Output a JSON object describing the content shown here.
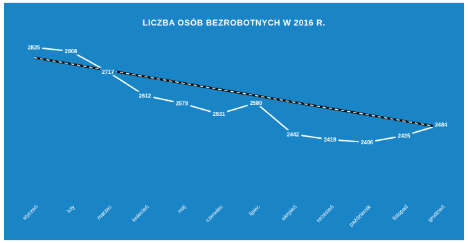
{
  "chart_data": {
    "type": "line",
    "title": "LICZBA OSÓB BEZROBOTNYCH W 2016 R.",
    "categories": [
      "styczeń",
      "luty",
      "marzec",
      "kwiecień",
      "maj",
      "czerwiec",
      "lipiec",
      "sierpień",
      "wrzesień",
      "październik",
      "listopad",
      "grudzień"
    ],
    "series": [
      {
        "values": [
          2825,
          2808,
          2717,
          2612,
          2578,
          2531,
          2580,
          2442,
          2418,
          2406,
          2435,
          2484
        ]
      },
      {
        "type": "trendline",
        "values": [
          2780,
          2752,
          2724,
          2696,
          2668,
          2640,
          2612,
          2584,
          2556,
          2528,
          2500,
          2472
        ]
      }
    ],
    "data_labels": [
      "2825",
      "2808",
      "2717",
      "2612",
      "2578",
      "2531",
      "2580",
      "2442",
      "2418",
      "2406",
      "2435",
      "2484"
    ],
    "ylim": [
      2050,
      2900
    ],
    "grid": false,
    "legend": "none",
    "colors": {
      "background": "#1a85c6",
      "series": "#ffffff",
      "trend": "#000000"
    }
  }
}
